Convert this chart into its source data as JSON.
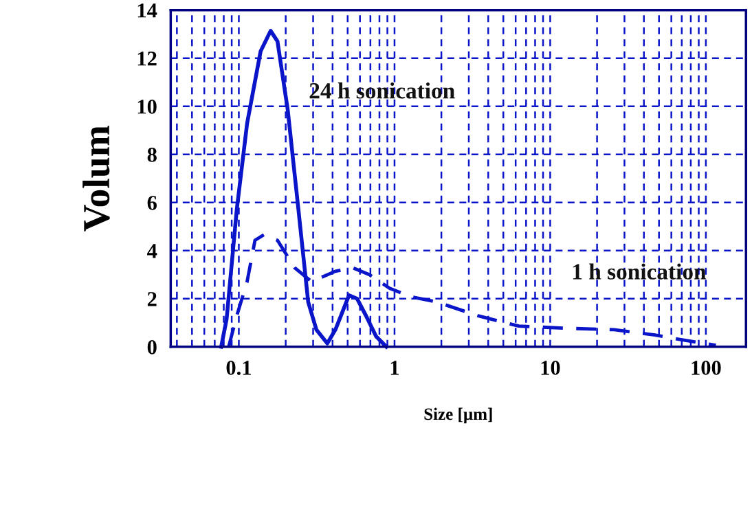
{
  "chart_data": {
    "type": "line",
    "xlabel": "Size [µm]",
    "ylabel": "Volum",
    "log": "x",
    "xlim": [
      0.0365,
      181
    ],
    "ylim": [
      0,
      14
    ],
    "xticks": [
      {
        "value": 0.04,
        "label": null
      },
      {
        "value": 0.05,
        "label": null
      },
      {
        "value": 0.06,
        "label": null
      },
      {
        "value": 0.07,
        "label": null
      },
      {
        "value": 0.08,
        "label": null
      },
      {
        "value": 0.09,
        "label": null
      },
      0.1,
      {
        "value": 0.2,
        "label": null
      },
      {
        "value": 0.3,
        "label": null
      },
      {
        "value": 0.4,
        "label": null
      },
      {
        "value": 0.5,
        "label": null
      },
      {
        "value": 0.6,
        "label": null
      },
      {
        "value": 0.7,
        "label": null
      },
      {
        "value": 0.8,
        "label": null
      },
      {
        "value": 0.9,
        "label": null
      },
      1,
      {
        "value": 2,
        "label": null
      },
      {
        "value": 3,
        "label": null
      },
      {
        "value": 4,
        "label": null
      },
      {
        "value": 5,
        "label": null
      },
      {
        "value": 6,
        "label": null
      },
      {
        "value": 7,
        "label": null
      },
      {
        "value": 8,
        "label": null
      },
      {
        "value": 9,
        "label": null
      },
      10,
      {
        "value": 20,
        "label": null
      },
      {
        "value": 30,
        "label": null
      },
      {
        "value": 40,
        "label": null
      },
      {
        "value": 50,
        "label": null
      },
      {
        "value": 60,
        "label": null
      },
      {
        "value": 70,
        "label": null
      },
      {
        "value": 80,
        "label": null
      },
      {
        "value": 90,
        "label": null
      },
      100
    ],
    "yticks": [
      0,
      2,
      4,
      6,
      8,
      10,
      12,
      14
    ],
    "grid": true,
    "legend": false,
    "marker": "none",
    "series": [
      {
        "name": "24 h sonication",
        "color": "#0a14c8",
        "line_style": "solid",
        "x": [
          0.077,
          0.0834,
          0.097,
          0.113,
          0.138,
          0.16,
          0.177,
          0.206,
          0.24,
          0.279,
          0.315,
          0.37,
          0.417,
          0.51,
          0.575,
          0.656,
          0.762,
          0.887
        ],
        "values": [
          0,
          1.14,
          5.71,
          9.29,
          12.29,
          13.14,
          12.71,
          9.86,
          5.86,
          1.86,
          0.71,
          0.14,
          0.71,
          2.14,
          2.0,
          1.29,
          0.43,
          0
        ]
      },
      {
        "name": "1 h sonication",
        "color": "#0a14c8",
        "line_style": "dashed",
        "x": [
          0.086,
          0.097,
          0.113,
          0.127,
          0.145,
          0.177,
          0.228,
          0.293,
          0.417,
          0.536,
          0.689,
          0.932,
          1.26,
          1.88,
          3.44,
          6.29,
          12.7,
          25.7,
          47.0,
          70.3,
          116
        ],
        "values": [
          0,
          1.29,
          2.71,
          4.43,
          4.66,
          4.43,
          3.29,
          2.71,
          3.14,
          3.29,
          3.0,
          2.43,
          2.09,
          1.86,
          1.29,
          0.86,
          0.77,
          0.71,
          0.49,
          0.29,
          0.06
        ]
      }
    ]
  }
}
